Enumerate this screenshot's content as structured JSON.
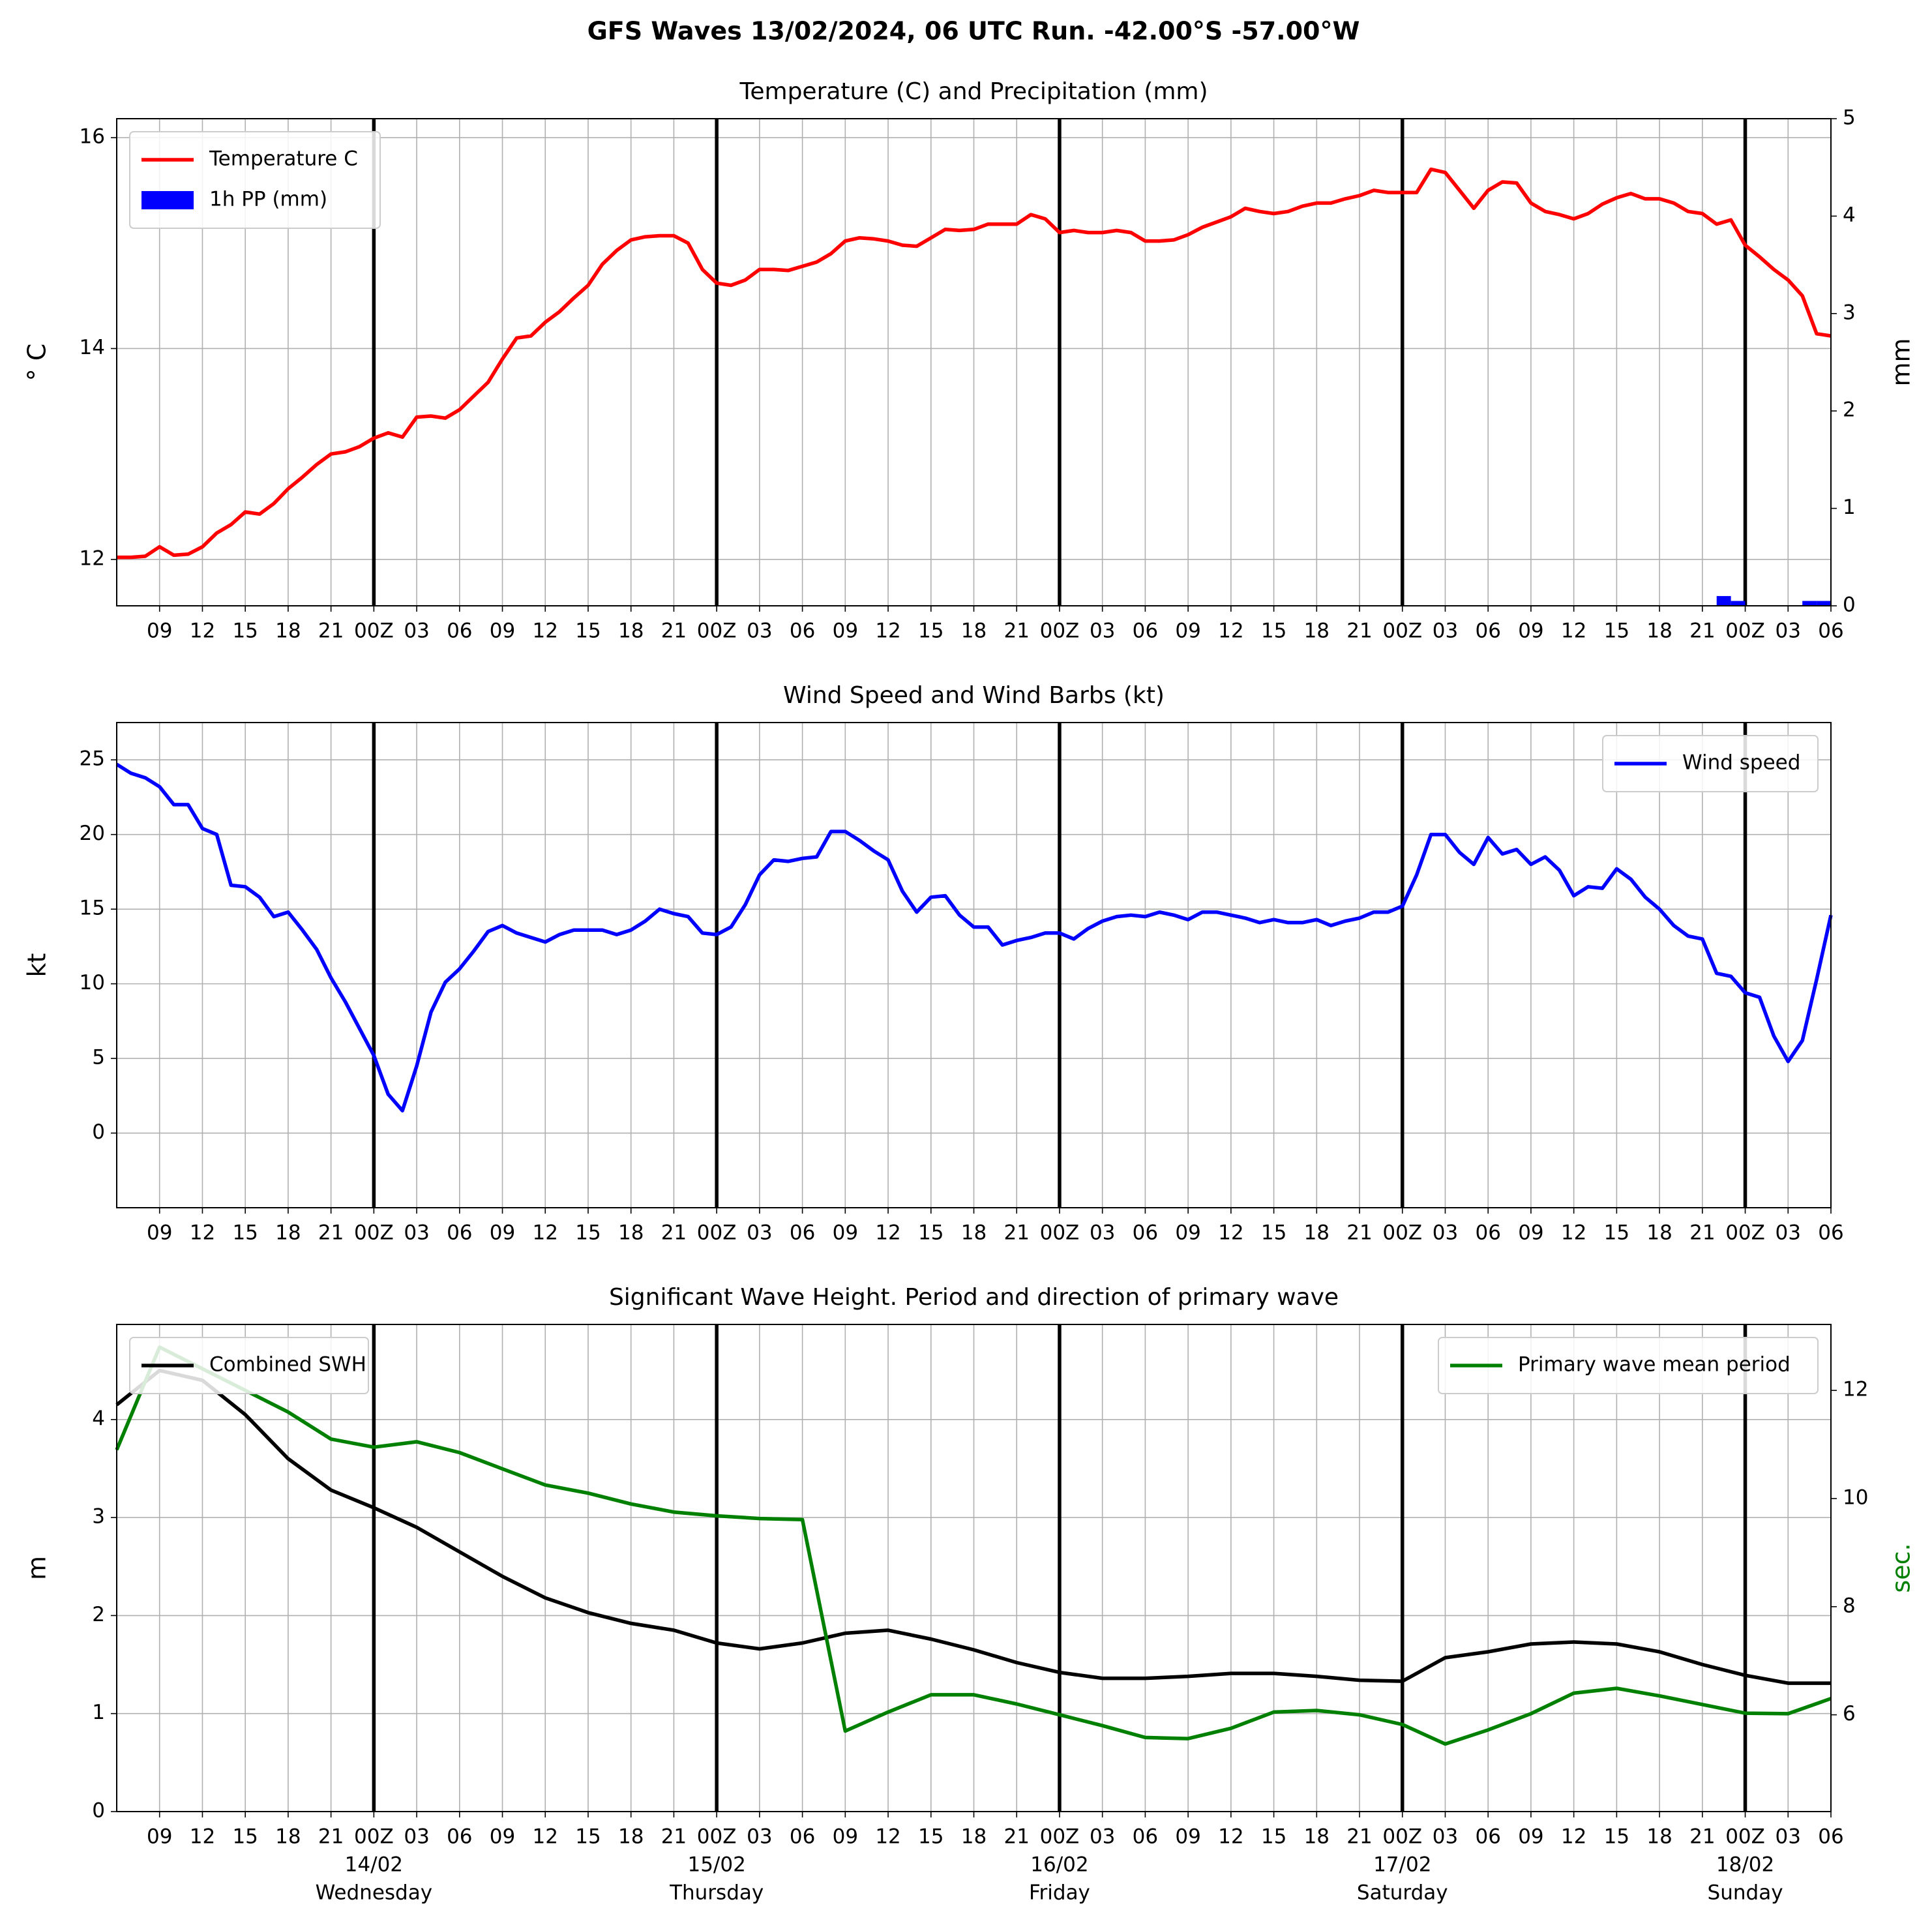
{
  "title": "GFS Waves 13/02/2024, 06 UTC Run. -42.00°S -57.00°W",
  "x_axis": {
    "xlim": [
      0,
      120
    ],
    "xticks": [
      {
        "value": 3,
        "label": "09"
      },
      {
        "value": 6,
        "label": "12"
      },
      {
        "value": 9,
        "label": "15"
      },
      {
        "value": 12,
        "label": "18"
      },
      {
        "value": 15,
        "label": "21"
      },
      {
        "value": 18,
        "label": "00Z"
      },
      {
        "value": 21,
        "label": "03"
      },
      {
        "value": 24,
        "label": "06"
      },
      {
        "value": 27,
        "label": "09"
      },
      {
        "value": 30,
        "label": "12"
      },
      {
        "value": 33,
        "label": "15"
      },
      {
        "value": 36,
        "label": "18"
      },
      {
        "value": 39,
        "label": "21"
      },
      {
        "value": 42,
        "label": "00Z"
      },
      {
        "value": 45,
        "label": "03"
      },
      {
        "value": 48,
        "label": "06"
      },
      {
        "value": 51,
        "label": "09"
      },
      {
        "value": 54,
        "label": "12"
      },
      {
        "value": 57,
        "label": "15"
      },
      {
        "value": 60,
        "label": "18"
      },
      {
        "value": 63,
        "label": "21"
      },
      {
        "value": 66,
        "label": "00Z"
      },
      {
        "value": 69,
        "label": "03"
      },
      {
        "value": 72,
        "label": "06"
      },
      {
        "value": 75,
        "label": "09"
      },
      {
        "value": 78,
        "label": "12"
      },
      {
        "value": 81,
        "label": "15"
      },
      {
        "value": 84,
        "label": "18"
      },
      {
        "value": 87,
        "label": "21"
      },
      {
        "value": 90,
        "label": "00Z"
      },
      {
        "value": 93,
        "label": "03"
      },
      {
        "value": 96,
        "label": "06"
      },
      {
        "value": 99,
        "label": "09"
      },
      {
        "value": 102,
        "label": "12"
      },
      {
        "value": 105,
        "label": "15"
      },
      {
        "value": 108,
        "label": "18"
      },
      {
        "value": 111,
        "label": "21"
      },
      {
        "value": 114,
        "label": "00Z"
      },
      {
        "value": 117,
        "label": "03"
      },
      {
        "value": 120,
        "label": "06"
      }
    ],
    "day_lines": [
      18,
      42,
      66,
      90,
      114
    ],
    "date_labels": [
      {
        "value": 18,
        "label": "14/02",
        "day": "Wednesday"
      },
      {
        "value": 42,
        "label": "15/02",
        "day": "Thursday"
      },
      {
        "value": 66,
        "label": "16/02",
        "day": "Friday"
      },
      {
        "value": 90,
        "label": "17/02",
        "day": "Saturday"
      },
      {
        "value": 114,
        "label": "18/02",
        "day": "Sunday"
      }
    ]
  },
  "chart_data": [
    {
      "type": "line",
      "title": "Temperature (C) and Precipitation (mm)",
      "ylabel": "° C",
      "y2label": "mm",
      "ylim": [
        11.56,
        16.18
      ],
      "yticks": [
        12,
        14,
        16
      ],
      "y2lim": [
        0,
        5
      ],
      "y2ticks": [
        0,
        1,
        2,
        3,
        4,
        5
      ],
      "grid": true,
      "legend": "upper left",
      "series": [
        {
          "name": "Temperature C",
          "color": "#ff0000",
          "x": [
            0,
            1,
            2,
            3,
            4,
            5,
            6,
            7,
            8,
            9,
            10,
            11,
            12,
            13,
            14,
            15,
            16,
            17,
            18,
            19,
            20,
            21,
            22,
            23,
            24,
            25,
            26,
            27,
            28,
            29,
            30,
            31,
            32,
            33,
            34,
            35,
            36,
            37,
            38,
            39,
            40,
            41,
            42,
            43,
            44,
            45,
            46,
            47,
            48,
            49,
            50,
            51,
            52,
            53,
            54,
            55,
            56,
            57,
            58,
            59,
            60,
            61,
            62,
            63,
            64,
            65,
            66,
            67,
            68,
            69,
            70,
            71,
            72,
            73,
            74,
            75,
            76,
            77,
            78,
            79,
            80,
            81,
            82,
            83,
            84,
            85,
            86,
            87,
            88,
            89,
            90,
            91,
            92,
            93,
            94,
            95,
            96,
            97,
            98,
            99,
            100,
            101,
            102,
            103,
            104,
            105,
            106,
            107,
            108,
            109,
            110,
            111,
            112,
            113,
            114,
            115,
            116,
            117,
            118,
            119,
            120
          ],
          "values": [
            12.02,
            12.02,
            12.03,
            12.12,
            12.04,
            12.05,
            12.12,
            12.25,
            12.33,
            12.45,
            12.43,
            12.53,
            12.67,
            12.78,
            12.9,
            13.0,
            13.02,
            13.07,
            13.15,
            13.2,
            13.16,
            13.35,
            13.36,
            13.34,
            13.42,
            13.55,
            13.68,
            13.9,
            14.1,
            14.12,
            14.25,
            14.35,
            14.48,
            14.6,
            14.8,
            14.93,
            15.03,
            15.06,
            15.07,
            15.07,
            15.0,
            14.75,
            14.62,
            14.6,
            14.65,
            14.75,
            14.75,
            14.74,
            14.78,
            14.82,
            14.9,
            15.02,
            15.05,
            15.04,
            15.02,
            14.98,
            14.97,
            15.05,
            15.13,
            15.12,
            15.13,
            15.18,
            15.18,
            15.18,
            15.27,
            15.23,
            15.1,
            15.12,
            15.1,
            15.1,
            15.12,
            15.1,
            15.02,
            15.02,
            15.03,
            15.08,
            15.15,
            15.2,
            15.25,
            15.33,
            15.3,
            15.28,
            15.3,
            15.35,
            15.38,
            15.38,
            15.42,
            15.45,
            15.5,
            15.48,
            15.48,
            15.48,
            15.7,
            15.67,
            15.5,
            15.33,
            15.5,
            15.58,
            15.57,
            15.38,
            15.3,
            15.27,
            15.23,
            15.28,
            15.37,
            15.43,
            15.47,
            15.42,
            15.42,
            15.38,
            15.3,
            15.28,
            15.18,
            15.22,
            14.98,
            14.87,
            14.75,
            14.65,
            14.5,
            14.14,
            14.12
          ]
        },
        {
          "name": "1h PP (mm)",
          "type": "bar",
          "color": "#0000ff",
          "axis": "y2",
          "x": [
            112,
            113,
            118,
            119
          ],
          "values": [
            0.1,
            0.05,
            0.05,
            0.05
          ]
        }
      ]
    },
    {
      "type": "line",
      "title": "Wind Speed and Wind Barbs (kt)",
      "ylabel": "kt",
      "ylim": [
        -5,
        27.5
      ],
      "yticks": [
        0,
        5,
        10,
        15,
        20,
        25
      ],
      "grid": true,
      "legend": "upper right",
      "series": [
        {
          "name": "Wind speed",
          "color": "#0000ff",
          "x": [
            0,
            1,
            2,
            3,
            4,
            5,
            6,
            7,
            8,
            9,
            10,
            11,
            12,
            13,
            14,
            15,
            16,
            17,
            18,
            19,
            20,
            21,
            22,
            23,
            24,
            25,
            26,
            27,
            28,
            29,
            30,
            31,
            32,
            33,
            34,
            35,
            36,
            37,
            38,
            39,
            40,
            41,
            42,
            43,
            44,
            45,
            46,
            47,
            48,
            49,
            50,
            51,
            52,
            53,
            54,
            55,
            56,
            57,
            58,
            59,
            60,
            61,
            62,
            63,
            64,
            65,
            66,
            67,
            68,
            69,
            70,
            71,
            72,
            73,
            74,
            75,
            76,
            77,
            78,
            79,
            80,
            81,
            82,
            83,
            84,
            85,
            86,
            87,
            88,
            89,
            90,
            91,
            92,
            93,
            94,
            95,
            96,
            97,
            98,
            99,
            100,
            101,
            102,
            103,
            104,
            105,
            106,
            107,
            108,
            109,
            110,
            111,
            112,
            113,
            114,
            115,
            116,
            117,
            118,
            119,
            120
          ],
          "values": [
            24.7,
            24.1,
            23.8,
            23.2,
            22.0,
            22.0,
            20.4,
            20.0,
            16.6,
            16.5,
            15.8,
            14.5,
            14.8,
            13.6,
            12.3,
            10.4,
            8.8,
            7.0,
            5.2,
            2.6,
            1.5,
            4.5,
            8.1,
            10.1,
            11.0,
            12.2,
            13.5,
            13.9,
            13.4,
            13.1,
            12.8,
            13.3,
            13.6,
            13.6,
            13.6,
            13.3,
            13.6,
            14.2,
            15.0,
            14.7,
            14.5,
            13.4,
            13.3,
            13.8,
            15.3,
            17.3,
            18.3,
            18.2,
            18.4,
            18.5,
            20.2,
            20.2,
            19.6,
            18.9,
            18.3,
            16.2,
            14.8,
            15.8,
            15.9,
            14.6,
            13.8,
            13.8,
            12.6,
            12.9,
            13.1,
            13.4,
            13.4,
            13.0,
            13.7,
            14.2,
            14.5,
            14.6,
            14.5,
            14.8,
            14.6,
            14.3,
            14.8,
            14.8,
            14.6,
            14.4,
            14.1,
            14.3,
            14.1,
            14.1,
            14.3,
            13.9,
            14.2,
            14.4,
            14.8,
            14.8,
            15.2,
            17.3,
            20.0,
            20.0,
            18.8,
            18.0,
            19.8,
            18.7,
            19.0,
            18.0,
            18.5,
            17.6,
            15.9,
            16.5,
            16.4,
            17.7,
            17.0,
            15.8,
            15.0,
            13.9,
            13.2,
            13.0,
            10.7,
            10.5,
            9.4,
            9.1,
            6.5,
            4.8,
            6.2,
            10.3,
            14.6
          ]
        }
      ]
    },
    {
      "type": "line",
      "title": "Significant Wave Height. Period and direction of primary wave",
      "ylabel": "m",
      "y2label": "sec.",
      "y2color": "#008000",
      "ylim": [
        0,
        4.97
      ],
      "yticks": [
        0,
        1,
        2,
        3,
        4
      ],
      "y2lim": [
        4.21,
        13.22
      ],
      "y2ticks": [
        6,
        8,
        10,
        12
      ],
      "grid": true,
      "dates": true,
      "series": [
        {
          "name": "Combined SWH",
          "color": "#000000",
          "legend": "upper left",
          "x": [
            0,
            3,
            6,
            9,
            12,
            15,
            18,
            21,
            24,
            27,
            30,
            33,
            36,
            39,
            42,
            45,
            48,
            51,
            54,
            57,
            60,
            63,
            66,
            69,
            72,
            75,
            78,
            81,
            84,
            87,
            90,
            93,
            96,
            99,
            102,
            105,
            108,
            111,
            114,
            117,
            120
          ],
          "values": [
            4.15,
            4.5,
            4.4,
            4.05,
            3.6,
            3.28,
            3.1,
            2.9,
            2.65,
            2.4,
            2.18,
            2.03,
            1.92,
            1.85,
            1.72,
            1.66,
            1.72,
            1.82,
            1.85,
            1.76,
            1.65,
            1.52,
            1.42,
            1.36,
            1.36,
            1.38,
            1.41,
            1.41,
            1.38,
            1.34,
            1.33,
            1.57,
            1.63,
            1.71,
            1.73,
            1.71,
            1.63,
            1.5,
            1.39,
            1.31,
            1.31
          ]
        },
        {
          "name": "Primary wave mean period",
          "color": "#008000",
          "axis": "y2",
          "legend": "upper right",
          "x": [
            0,
            3,
            6,
            9,
            12,
            15,
            18,
            21,
            24,
            27,
            30,
            33,
            36,
            39,
            42,
            45,
            48,
            51,
            54,
            57,
            60,
            63,
            66,
            69,
            72,
            75,
            78,
            81,
            84,
            87,
            90,
            93,
            96,
            99,
            102,
            105,
            108,
            111,
            114,
            117,
            120
          ],
          "values": [
            10.9,
            12.8,
            12.4,
            12.0,
            11.6,
            11.1,
            10.95,
            11.05,
            10.85,
            10.55,
            10.25,
            10.1,
            9.9,
            9.75,
            9.68,
            9.63,
            9.61,
            5.7,
            6.05,
            6.37,
            6.37,
            6.2,
            6.0,
            5.8,
            5.58,
            5.56,
            5.75,
            6.05,
            6.08,
            6.0,
            5.82,
            5.46,
            5.72,
            6.02,
            6.4,
            6.49,
            6.35,
            6.19,
            6.03,
            6.02,
            6.3
          ]
        }
      ]
    }
  ]
}
